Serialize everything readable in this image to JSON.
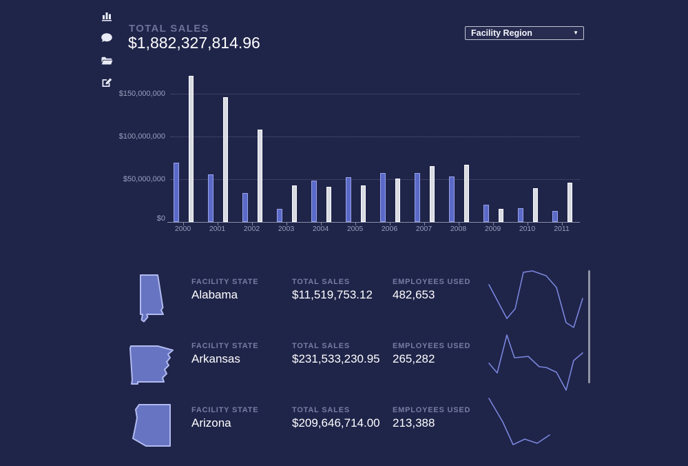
{
  "sidebar": {
    "icons": [
      {
        "name": "bar-chart-icon"
      },
      {
        "name": "comment-icon"
      },
      {
        "name": "folder-open-icon"
      },
      {
        "name": "edit-icon"
      }
    ]
  },
  "header": {
    "label": "TOTAL SALES",
    "value": "$1,882,327,814.96"
  },
  "region_filter": {
    "value": "Facility Region",
    "caret": "▼"
  },
  "chart_data": {
    "type": "bar",
    "title": "",
    "xlabel": "",
    "ylabel": "",
    "categories": [
      "2000",
      "2001",
      "2002",
      "2003",
      "2004",
      "2005",
      "2006",
      "2007",
      "2008",
      "2009",
      "2010",
      "2011"
    ],
    "series": [
      {
        "name": "sales-purple",
        "color": "#5b6ac8",
        "border": "#99a4ea",
        "values": [
          69500000,
          56000000,
          33500000,
          15500000,
          48000000,
          52500000,
          57000000,
          57000000,
          53000000,
          20500000,
          16500000,
          12500000
        ]
      },
      {
        "name": "sales-white",
        "color": "#d9dbe2",
        "border": "#fdfdfe",
        "values": [
          171000000,
          146000000,
          108000000,
          43000000,
          41000000,
          42500000,
          51000000,
          65000000,
          67000000,
          15500000,
          39500000,
          46000000
        ]
      }
    ],
    "ylim": [
      0,
      160000000
    ],
    "yticks": [
      {
        "value": 0,
        "label": "$0"
      },
      {
        "value": 50000000,
        "label": "$50,000,000"
      },
      {
        "value": 100000000,
        "label": "$100,000,000"
      },
      {
        "value": 150000000,
        "label": "$150,000,000"
      }
    ],
    "grid": "horizontal-dotted",
    "legend": "none"
  },
  "rows": [
    {
      "state": "Alabama",
      "labels": {
        "facility": "FACILITY STATE",
        "sales": "TOTAL SALES",
        "employees": "EMPLOYEES USED"
      },
      "sales": "$11,519,753.12",
      "employees": "482,653",
      "spark": [
        [
          10,
          28
        ],
        [
          36,
          77
        ],
        [
          48,
          63
        ],
        [
          60,
          10
        ],
        [
          73,
          8
        ],
        [
          93,
          15
        ],
        [
          108,
          32
        ],
        [
          122,
          83
        ],
        [
          133,
          90
        ],
        [
          146,
          48
        ]
      ]
    },
    {
      "state": "Arkansas",
      "labels": {
        "facility": "FACILITY STATE",
        "sales": "TOTAL SALES",
        "employees": "EMPLOYEES USED"
      },
      "sales": "$231,533,230.95",
      "employees": "265,282",
      "spark": [
        [
          10,
          49
        ],
        [
          22,
          63
        ],
        [
          36,
          8
        ],
        [
          47,
          41
        ],
        [
          67,
          39
        ],
        [
          83,
          54
        ],
        [
          93,
          55
        ],
        [
          108,
          62
        ],
        [
          122,
          88
        ],
        [
          133,
          45
        ],
        [
          146,
          34
        ]
      ]
    },
    {
      "state": "Arizona",
      "labels": {
        "facility": "FACILITY STATE",
        "sales": "TOTAL SALES",
        "employees": "EMPLOYEES USED"
      },
      "sales": "$209,646,714.00",
      "employees": "213,388",
      "spark": [
        [
          10,
          7
        ],
        [
          30,
          41
        ],
        [
          45,
          74
        ],
        [
          62,
          66
        ],
        [
          80,
          72
        ],
        [
          98,
          60
        ]
      ]
    }
  ]
}
